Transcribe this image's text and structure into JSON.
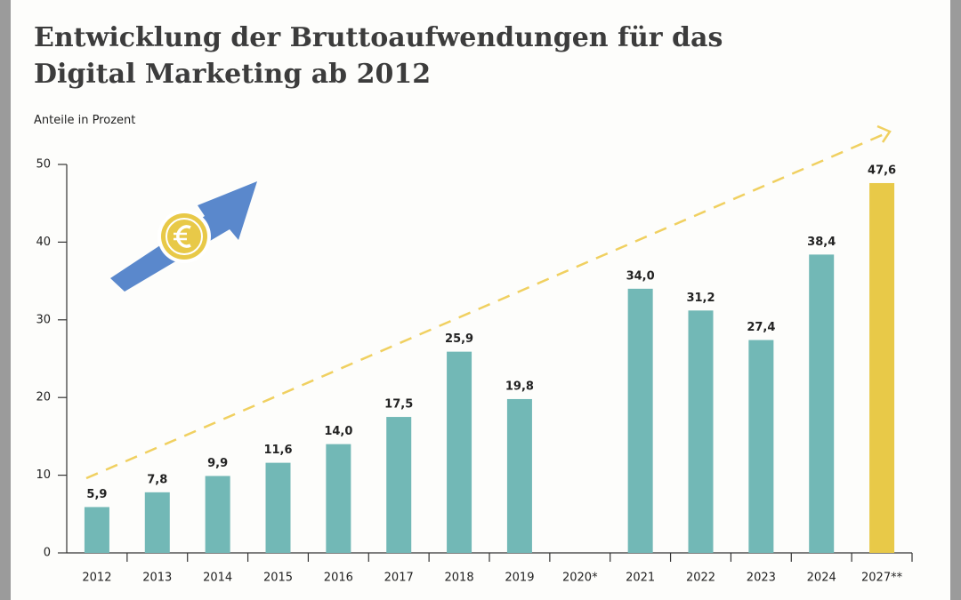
{
  "chart_data": {
    "type": "bar",
    "title": "Entwicklung der Bruttoaufwendungen für das Digital Marketing ab 2012",
    "subtitle": "Anteile in Prozent",
    "categories": [
      "2012",
      "2013",
      "2014",
      "2015",
      "2016",
      "2017",
      "2018",
      "2019",
      "2020*",
      "2021",
      "2022",
      "2023",
      "2024",
      "2027**"
    ],
    "values": [
      5.9,
      7.8,
      9.9,
      11.6,
      14.0,
      17.5,
      25.9,
      19.8,
      null,
      34.0,
      31.2,
      27.4,
      38.4,
      47.6
    ],
    "value_labels": [
      "5,9",
      "7,8",
      "9,9",
      "11,6",
      "14,0",
      "17,5",
      "25,9",
      "19,8",
      null,
      "34,0",
      "31,2",
      "27,4",
      "38,4",
      "47,6"
    ],
    "colors": [
      "#72b8b6",
      "#72b8b6",
      "#72b8b6",
      "#72b8b6",
      "#72b8b6",
      "#72b8b6",
      "#72b8b6",
      "#72b8b6",
      "#72b8b6",
      "#72b8b6",
      "#72b8b6",
      "#72b8b6",
      "#72b8b6",
      "#e8c948"
    ],
    "ylim": [
      0,
      50
    ],
    "yticks": [
      0,
      10,
      20,
      30,
      40,
      50
    ],
    "grid": false
  }
}
